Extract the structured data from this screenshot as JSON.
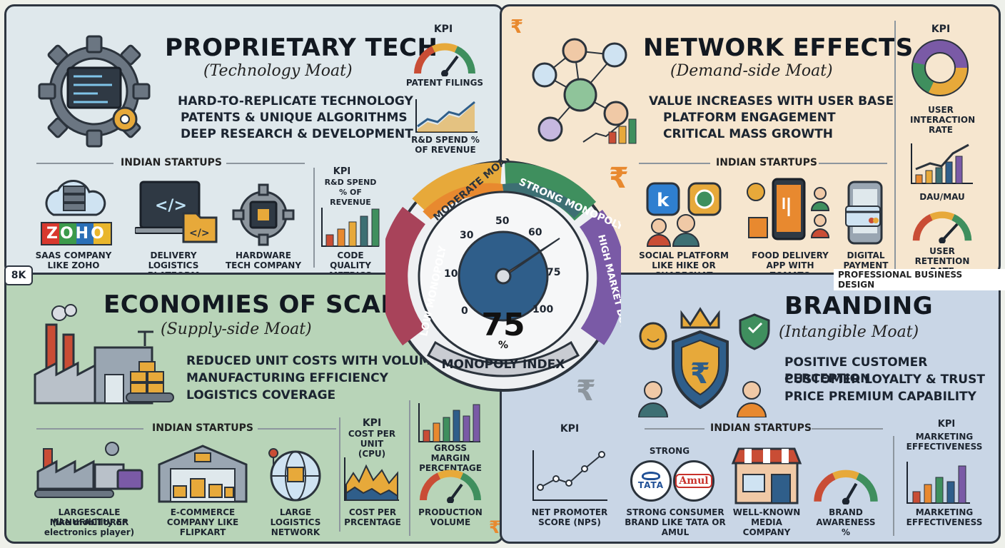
{
  "badge": "8K",
  "watermark": "PROFESSIONAL BUSINESS DESIGN",
  "center": {
    "value": "75",
    "unit": "%",
    "label": "MONOPOLY INDEX",
    "segments": [
      "LOW MONOPOLY",
      "MODERATE MOATS",
      "STRONG MONOPOLY",
      "HIGH MARKET DOMINANCE"
    ],
    "ticks": [
      "0",
      "10",
      "30",
      "50",
      "60",
      "75",
      "100"
    ],
    "needle_value": 75
  },
  "tech": {
    "title": "PROPRIETARY TECH",
    "subtitle": "(Technology Moat)",
    "bullets": [
      "HARD-TO-REPLICATE TECHNOLOGY",
      "PATENTS & UNIQUE ALGORITHMS",
      "DEEP RESEARCH & DEVELOPMENT"
    ],
    "kpi_label": "KPI",
    "kpi1": "PATENT FILINGS",
    "kpi2": "R&D SPEND % OF REVENUE",
    "startups_label": "INDIAN STARTUPS",
    "s1_logo": "ZOHO",
    "s1": "SAAS COMPANY LIKE ZOHO",
    "s2": "DELIVERY LOGISTICS PLATFORM",
    "s3": "HARDWARE TECH COMPANY",
    "kpi_box_label": "KPI",
    "kpi_box_title": "R&D SPEND % OF REVENUE",
    "kpi_box_caption": "CODE QUALITY METRICS"
  },
  "network": {
    "title": "NETWORK EFFECTS",
    "subtitle": "(Demand-side Moat)",
    "bullets": [
      "VALUE INCREASES WITH USER BASE",
      "PLATFORM ENGAGEMENT",
      "CRITICAL MASS GROWTH"
    ],
    "kpi_label": "KPI",
    "kpi1": "USER INTERACTION RATE",
    "kpi2": "DAU/MAU",
    "kpi3": "USER RETENTION RATE",
    "startups_label": "INDIAN STARTUPS",
    "s1": "SOCIAL PLATFORM LIKE HIKE or SHARECHAT",
    "s2": "FOOD DELIVERY APP WITH ZOMATO",
    "s3": "DIGITAL PAYMENT"
  },
  "scale": {
    "title": "ECONOMIES OF SCALE",
    "subtitle": "(Supply-side Moat)",
    "bullets": [
      "REDUCED UNIT COSTS WITH VOLUME",
      "MANUFACTURING EFFICIENCY",
      "LOGISTICS COVERAGE"
    ],
    "startups_label": "INDIAN STARTUPS",
    "s1": "LARGESCALE MANUFACTURER",
    "s1b": "(ike mobility or electronics player)",
    "s2": "E-COMMERCE COMPANY LIKE FLIPKART",
    "s3": "LARGE LOGISTICS NETWORK",
    "kpi_label": "KPI",
    "kpi_title": "COST PER UNIT (CPU)",
    "kpi_caption": "COST PER PRCENTAGE",
    "kpi2": "GROSS MARGIN PERCENTAGE",
    "kpi3": "PRODUCTION VOLUME"
  },
  "brand": {
    "title": "BRANDING",
    "subtitle": "(Intangible Moat)",
    "bullets": [
      "POSITIVE CUSTOMER PERCEPTION",
      "CUSTOMER LOYALTY & TRUST",
      "PRICE PREMIUM CAPABILITY"
    ],
    "kpi_label": "KPI",
    "kpi1": "NET PROMOTER SCORE (NPS)",
    "startups_label": "INDIAN STARTUPS",
    "strong": "STRONG",
    "logo1": "TATA",
    "logo2": "Amul",
    "s1": "STRONG CONSUMER BRAND LIKE TATA or AMUL",
    "s2": "WELL-KNOWN MEDIA COMPANY",
    "s3": "BRAND AWARENESS %",
    "kpi2_label": "KPI",
    "kpi2_title": "MARKETING EFFECTIVENESS",
    "kpi2_caption": "MARKETING EFFECTIVENESS"
  },
  "colors": {
    "orange": "#e8892f",
    "green": "#3f8f5e",
    "purple": "#7a5aa6",
    "teal": "#3d6f73",
    "red": "#c94d35",
    "gold": "#e7a93a"
  }
}
